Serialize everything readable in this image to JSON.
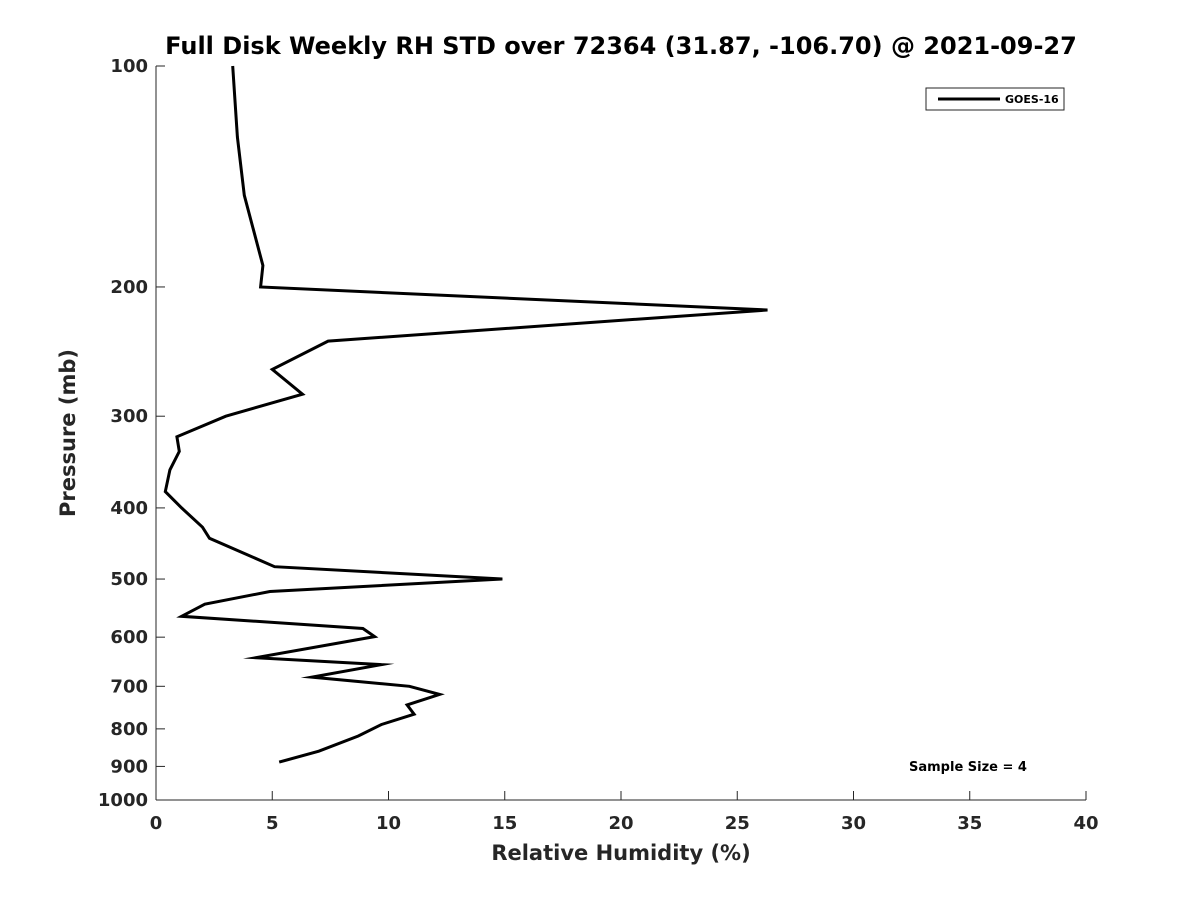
{
  "chart_data": {
    "type": "line",
    "title": "Full Disk Weekly RH STD over 72364 (31.87, -106.70) @ 2021-09-27",
    "xlabel": "Relative Humidity (%)",
    "ylabel": "Pressure (mb)",
    "xlim": [
      0,
      40
    ],
    "ylim": [
      100,
      1000
    ],
    "y_scale": "log",
    "y_reversed": true,
    "grid": false,
    "xticks": [
      "0",
      "5",
      "10",
      "15",
      "20",
      "25",
      "30",
      "35",
      "40"
    ],
    "yticks": [
      "100",
      "200",
      "300",
      "400",
      "500",
      "600",
      "700",
      "800",
      "900",
      "1000"
    ],
    "legend": {
      "position": "top-right",
      "entries": [
        "GOES-16"
      ]
    },
    "annotation": "Sample Size = 4",
    "series": [
      {
        "name": "GOES-16",
        "color": "#000000",
        "x": [
          3.3,
          3.5,
          3.8,
          4.6,
          4.5,
          26.3,
          7.4,
          5.0,
          6.3,
          3.0,
          0.9,
          1.0,
          0.6,
          0.4,
          1.1,
          2.0,
          2.3,
          3.9,
          5.1,
          14.9,
          4.9,
          2.1,
          1.1,
          8.9,
          9.4,
          4.3,
          9.7,
          6.7,
          10.9,
          12.2,
          10.8,
          11.1,
          9.7,
          8.7,
          7.0,
          5.3
        ],
        "y": [
          100,
          125,
          150,
          187,
          200,
          215,
          237,
          259,
          280,
          300,
          320,
          335,
          355,
          380,
          400,
          425,
          440,
          463,
          481,
          500,
          520,
          541,
          562,
          584,
          599,
          640,
          654,
          680,
          700,
          718,
          742,
          764,
          789,
          818,
          858,
          888
        ]
      }
    ]
  }
}
